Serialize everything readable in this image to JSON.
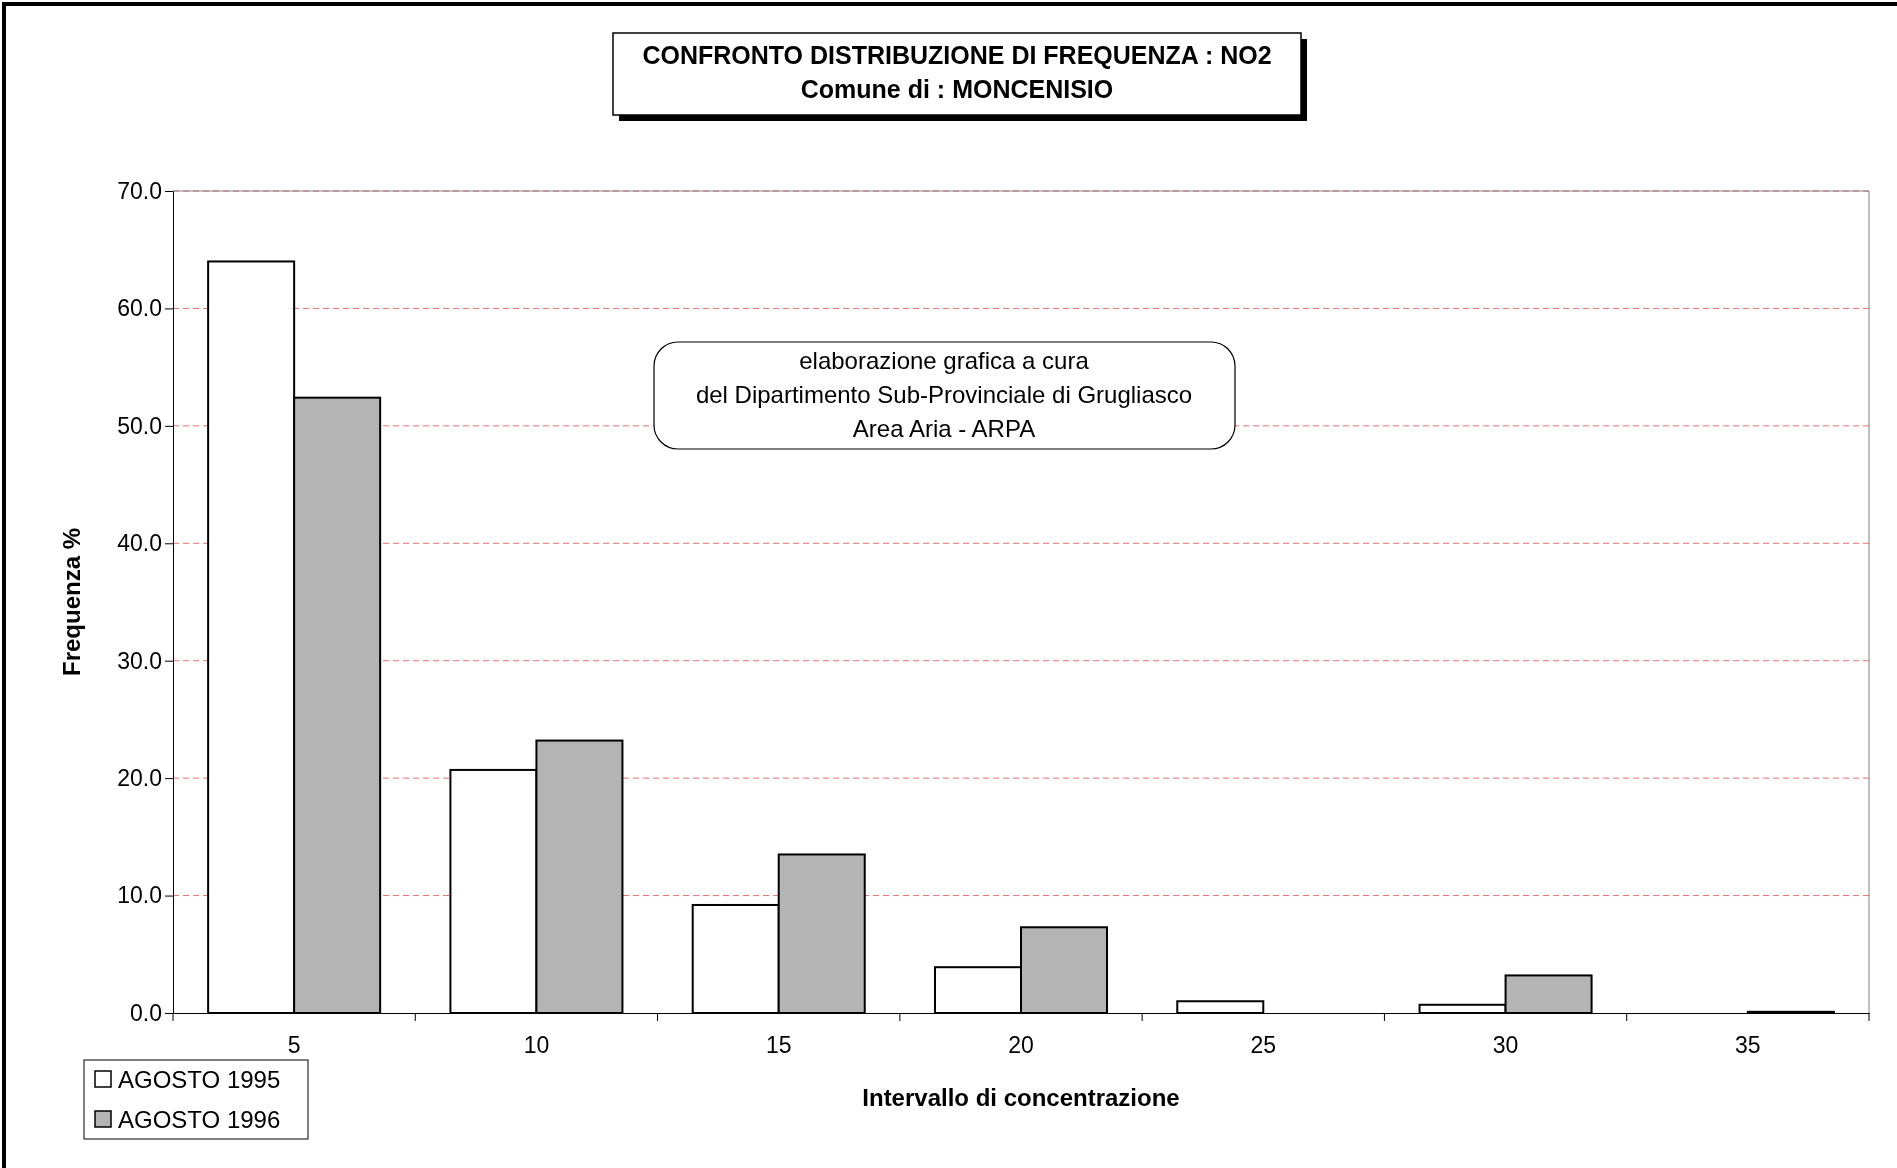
{
  "chart_data": {
    "type": "bar",
    "title": "CONFRONTO DISTRIBUZIONE DI FREQUENZA : NO2",
    "subtitle": "Comune di : MONCENISIO",
    "xlabel": "Intervallo di concentrazione",
    "ylabel": "Frequenza %",
    "annotations": [
      "elaborazione grafica a cura\ndel Dipartimento Sub-Provinciale di Grugliasco\nArea Aria - ARPA"
    ],
    "categories": [
      "5",
      "10",
      "15",
      "20",
      "25",
      "30",
      "35"
    ],
    "series": [
      {
        "name": "AGOSTO 1995",
        "color": "#ffffff",
        "values": [
          64.0,
          20.7,
          9.2,
          3.9,
          1.0,
          0.7,
          0
        ]
      },
      {
        "name": "AGOSTO 1996",
        "color": "#b4b4b4",
        "values": [
          52.4,
          23.2,
          13.5,
          7.3,
          0,
          3.2,
          0.1
        ]
      }
    ],
    "ylim": [
      0,
      70
    ],
    "yticks": [
      {
        "value": 0,
        "label": "0.0"
      },
      {
        "value": 10,
        "label": "10.0"
      },
      {
        "value": 20,
        "label": "20.0"
      },
      {
        "value": 30,
        "label": "30.0"
      },
      {
        "value": 40,
        "label": "40.0"
      },
      {
        "value": 50,
        "label": "50.0"
      },
      {
        "value": 60,
        "label": "60.0"
      },
      {
        "value": 70,
        "label": "70.0"
      }
    ],
    "grid": "y",
    "legend": "bottom left"
  }
}
